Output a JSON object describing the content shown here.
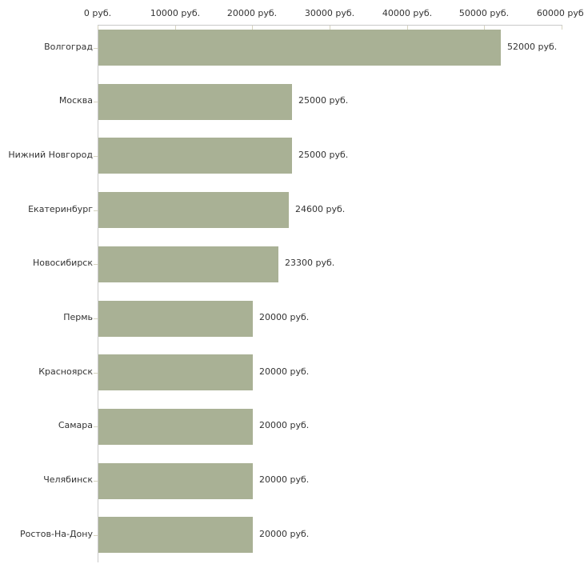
{
  "chart_data": {
    "type": "bar",
    "orientation": "horizontal",
    "title": "",
    "xlabel": "",
    "ylabel": "",
    "xlim": [
      0,
      60000
    ],
    "grid": false,
    "legend": null,
    "unit": "руб.",
    "categories": [
      "Волгоград",
      "Москва",
      "Нижний Новгород",
      "Екатеринбург",
      "Новосибирск",
      "Пермь",
      "Красноярск",
      "Самара",
      "Челябинск",
      "Ростов-На-Дону"
    ],
    "values": [
      52000,
      25000,
      25000,
      24600,
      23300,
      20000,
      20000,
      20000,
      20000,
      20000
    ],
    "value_labels": [
      "52000 руб.",
      "25000 руб.",
      "25000 руб.",
      "24600 руб.",
      "23300 руб.",
      "20000 руб.",
      "20000 руб.",
      "20000 руб.",
      "20000 руб.",
      "20000 руб."
    ],
    "x_tick_values": [
      0,
      10000,
      20000,
      30000,
      40000,
      50000,
      60000
    ],
    "x_tick_labels": [
      "0 руб.",
      "10000 руб.",
      "20000 руб.",
      "30000 руб.",
      "40000 руб.",
      "50000 руб.",
      "60000 руб."
    ],
    "colors": {
      "bar": "#a9b195",
      "axis_line": "#c9c9c9",
      "tick_mark": "#d6d3c0",
      "text": "#333333",
      "background": "#ffffff"
    }
  }
}
